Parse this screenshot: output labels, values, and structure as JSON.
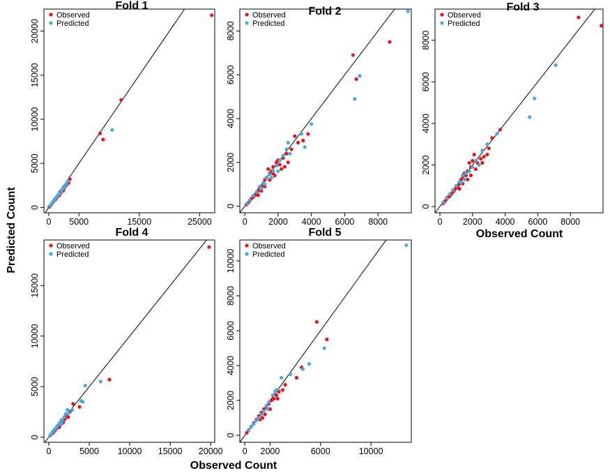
{
  "figure": {
    "ylabel": "Predicted Count",
    "xlabel_bottom": "Observed Count",
    "xlabel_right": "Observed Count"
  },
  "colors": {
    "observed": "#e8141c",
    "predicted": "#4aa8dd",
    "line": "#000000"
  },
  "legend": {
    "observed": "Observed",
    "predicted": "Predicted"
  },
  "chart_data": [
    {
      "type": "scatter",
      "title": "Fold 1",
      "xlim": [
        -800,
        27500
      ],
      "ylim": [
        -600,
        22500
      ],
      "xticks": [
        0,
        5000,
        15000,
        25000
      ],
      "yticks": [
        0,
        5000,
        10000,
        15000,
        20000
      ],
      "reference_line": "y = x",
      "series": [
        {
          "name": "Observed",
          "points": [
            [
              27000,
              21800
            ],
            [
              12000,
              12200
            ],
            [
              8500,
              8400
            ],
            [
              9000,
              7700
            ],
            [
              3500,
              3200
            ],
            [
              3300,
              2800
            ],
            [
              2600,
              2200
            ],
            [
              2200,
              2000
            ],
            [
              1900,
              1800
            ],
            [
              1600,
              1400
            ],
            [
              1300,
              1100
            ],
            [
              1100,
              900
            ],
            [
              900,
              800
            ],
            [
              700,
              600
            ],
            [
              600,
              500
            ],
            [
              400,
              300
            ],
            [
              250,
              200
            ],
            [
              100,
              80
            ],
            [
              1500,
              1300
            ],
            [
              2400,
              1900
            ],
            [
              3000,
              2600
            ],
            [
              1800,
              1400
            ],
            [
              2800,
              2500
            ],
            [
              1200,
              1000
            ],
            [
              2000,
              1700
            ]
          ]
        },
        {
          "name": "Predicted",
          "points": [
            [
              10500,
              8800
            ],
            [
              3200,
              3000
            ],
            [
              2900,
              2700
            ],
            [
              2500,
              2400
            ],
            [
              2100,
              1900
            ],
            [
              1800,
              1600
            ],
            [
              1500,
              1400
            ],
            [
              1200,
              1100
            ],
            [
              1000,
              950
            ],
            [
              800,
              700
            ],
            [
              600,
              550
            ],
            [
              400,
              350
            ],
            [
              200,
              180
            ],
            [
              2700,
              2300
            ],
            [
              1700,
              1500
            ],
            [
              2300,
              2100
            ]
          ]
        }
      ]
    },
    {
      "type": "scatter",
      "title": "Fold 2",
      "xlim": [
        -300,
        10000
      ],
      "ylim": [
        -300,
        9000
      ],
      "xticks": [
        0,
        2000,
        4000,
        6000,
        8000
      ],
      "yticks": [
        0,
        2000,
        4000,
        6000,
        8000
      ],
      "reference_line": "y = x",
      "series": [
        {
          "name": "Observed",
          "points": [
            [
              8700,
              7500
            ],
            [
              6500,
              6900
            ],
            [
              6700,
              5800
            ],
            [
              3800,
              3300
            ],
            [
              3000,
              3200
            ],
            [
              3200,
              2900
            ],
            [
              2800,
              2600
            ],
            [
              2500,
              2400
            ],
            [
              2300,
              2200
            ],
            [
              2000,
              2100
            ],
            [
              1900,
              2000
            ],
            [
              1700,
              1800
            ],
            [
              1600,
              1600
            ],
            [
              1500,
              1500
            ],
            [
              1400,
              1700
            ],
            [
              1300,
              1300
            ],
            [
              1200,
              1200
            ],
            [
              1100,
              1000
            ],
            [
              1000,
              900
            ],
            [
              900,
              850
            ],
            [
              800,
              700
            ],
            [
              700,
              600
            ],
            [
              600,
              500
            ],
            [
              500,
              420
            ],
            [
              400,
              350
            ],
            [
              300,
              250
            ],
            [
              200,
              150
            ],
            [
              100,
              80
            ],
            [
              2200,
              1700
            ],
            [
              1800,
              1400
            ],
            [
              2600,
              2000
            ],
            [
              2400,
              1800
            ],
            [
              1500,
              1200
            ],
            [
              1200,
              900
            ],
            [
              1000,
              700
            ],
            [
              800,
              500
            ],
            [
              2100,
              1900
            ],
            [
              1700,
              1500
            ],
            [
              3500,
              3000
            ]
          ]
        },
        {
          "name": "Predicted",
          "points": [
            [
              9800,
              8900
            ],
            [
              6900,
              5950
            ],
            [
              6600,
              4900
            ],
            [
              4000,
              3750
            ],
            [
              3600,
              2700
            ],
            [
              3400,
              3300
            ],
            [
              2600,
              2900
            ],
            [
              2500,
              2600
            ],
            [
              2300,
              2300
            ],
            [
              2100,
              2100
            ],
            [
              1900,
              1850
            ],
            [
              1700,
              1600
            ],
            [
              1500,
              1450
            ],
            [
              1300,
              1300
            ],
            [
              1100,
              1050
            ],
            [
              900,
              900
            ],
            [
              700,
              650
            ],
            [
              500,
              480
            ],
            [
              300,
              280
            ],
            [
              150,
              120
            ],
            [
              2700,
              2400
            ],
            [
              2000,
              1600
            ],
            [
              1600,
              1300
            ],
            [
              1200,
              1000
            ],
            [
              1000,
              800
            ]
          ]
        }
      ]
    },
    {
      "type": "scatter",
      "title": "Fold 3",
      "xlim": [
        -300,
        10000
      ],
      "ylim": [
        -300,
        9500
      ],
      "xticks": [
        0,
        2000,
        4000,
        6000,
        8000
      ],
      "yticks": [
        0,
        2000,
        4000,
        6000,
        8000
      ],
      "reference_line": "y = x",
      "series": [
        {
          "name": "Observed",
          "points": [
            [
              8500,
              9100
            ],
            [
              9900,
              8700
            ],
            [
              3700,
              3700
            ],
            [
              3200,
              3300
            ],
            [
              3000,
              2800
            ],
            [
              2700,
              2400
            ],
            [
              2500,
              2300
            ],
            [
              2300,
              2100
            ],
            [
              2100,
              2500
            ],
            [
              2000,
              2200
            ],
            [
              1900,
              1900
            ],
            [
              1800,
              2100
            ],
            [
              1700,
              1700
            ],
            [
              1600,
              1500
            ],
            [
              1500,
              1600
            ],
            [
              1400,
              1400
            ],
            [
              1300,
              1300
            ],
            [
              1200,
              1100
            ],
            [
              1100,
              1000
            ],
            [
              1000,
              900
            ],
            [
              900,
              800
            ],
            [
              800,
              700
            ],
            [
              700,
              600
            ],
            [
              600,
              500
            ],
            [
              500,
              450
            ],
            [
              400,
              350
            ],
            [
              300,
              250
            ],
            [
              200,
              150
            ],
            [
              2200,
              1800
            ],
            [
              2600,
              2100
            ],
            [
              1700,
              1300
            ],
            [
              1400,
              1100
            ],
            [
              2900,
              2500
            ],
            [
              1900,
              1500
            ],
            [
              1200,
              850
            ]
          ]
        },
        {
          "name": "Predicted",
          "points": [
            [
              7100,
              6800
            ],
            [
              5800,
              5200
            ],
            [
              5500,
              4300
            ],
            [
              3500,
              3500
            ],
            [
              2900,
              3000
            ],
            [
              2600,
              2700
            ],
            [
              2200,
              2200
            ],
            [
              2000,
              1900
            ],
            [
              1800,
              1700
            ],
            [
              1600,
              1600
            ],
            [
              1400,
              1500
            ],
            [
              1200,
              1200
            ],
            [
              1000,
              1000
            ],
            [
              800,
              800
            ],
            [
              600,
              600
            ],
            [
              400,
              400
            ],
            [
              200,
              200
            ],
            [
              1500,
              1300
            ],
            [
              1300,
              1150
            ],
            [
              2400,
              2000
            ]
          ]
        }
      ]
    },
    {
      "type": "scatter",
      "title": "Fold 4",
      "xlim": [
        -600,
        20500
      ],
      "ylim": [
        -500,
        19500
      ],
      "xticks": [
        0,
        5000,
        10000,
        15000,
        20000
      ],
      "yticks": [
        0,
        5000,
        10000,
        15000
      ],
      "reference_line": "y = x",
      "series": [
        {
          "name": "Observed",
          "points": [
            [
              19800,
              18800
            ],
            [
              7500,
              5700
            ],
            [
              3800,
              3000
            ],
            [
              3000,
              3300
            ],
            [
              2600,
              2500
            ],
            [
              2200,
              2100
            ],
            [
              2000,
              1800
            ],
            [
              1800,
              1500
            ],
            [
              1600,
              1700
            ],
            [
              1400,
              1300
            ],
            [
              1200,
              1100
            ],
            [
              1000,
              900
            ],
            [
              800,
              700
            ],
            [
              600,
              500
            ],
            [
              400,
              350
            ],
            [
              200,
              180
            ],
            [
              2400,
              2000
            ],
            [
              1700,
              1400
            ],
            [
              1300,
              1000
            ]
          ]
        },
        {
          "name": "Predicted",
          "points": [
            [
              4500,
              5100
            ],
            [
              6400,
              5500
            ],
            [
              4200,
              3500
            ],
            [
              4000,
              3600
            ],
            [
              2900,
              2700
            ],
            [
              2300,
              2700
            ],
            [
              2100,
              2300
            ],
            [
              1900,
              2000
            ],
            [
              1700,
              1700
            ],
            [
              1500,
              1600
            ],
            [
              1300,
              1400
            ],
            [
              1100,
              1150
            ],
            [
              900,
              950
            ],
            [
              700,
              750
            ],
            [
              500,
              550
            ],
            [
              300,
              320
            ],
            [
              150,
              160
            ],
            [
              2500,
              2400
            ],
            [
              1600,
              1300
            ]
          ]
        }
      ]
    },
    {
      "type": "scatter",
      "title": "Fold 5",
      "xlim": [
        -400,
        13200
      ],
      "ylim": [
        -400,
        11200
      ],
      "xticks": [
        0,
        2000,
        6000,
        10000
      ],
      "yticks": [
        0,
        2000,
        4000,
        6000,
        8000,
        10000
      ],
      "reference_line": "y = x",
      "series": [
        {
          "name": "Observed",
          "points": [
            [
              5700,
              6500
            ],
            [
              6500,
              5500
            ],
            [
              4500,
              3900
            ],
            [
              4100,
              3300
            ],
            [
              3200,
              2900
            ],
            [
              3000,
              2600
            ],
            [
              2700,
              2500
            ],
            [
              2500,
              2300
            ],
            [
              2300,
              2100
            ],
            [
              2100,
              2000
            ],
            [
              1900,
              1800
            ],
            [
              1700,
              1600
            ],
            [
              1500,
              1500
            ],
            [
              1300,
              1300
            ],
            [
              1100,
              1100
            ],
            [
              900,
              900
            ],
            [
              700,
              700
            ],
            [
              500,
              500
            ],
            [
              300,
              300
            ],
            [
              150,
              150
            ],
            [
              2000,
              1500
            ],
            [
              1600,
              1200
            ],
            [
              1200,
              900
            ],
            [
              2600,
              2100
            ],
            [
              1400,
              1000
            ]
          ]
        },
        {
          "name": "Predicted",
          "points": [
            [
              12800,
              10900
            ],
            [
              6300,
              5000
            ],
            [
              5100,
              4100
            ],
            [
              4600,
              3800
            ],
            [
              3600,
              3500
            ],
            [
              2900,
              3300
            ],
            [
              2500,
              2600
            ],
            [
              2200,
              2300
            ],
            [
              1900,
              1900
            ],
            [
              1700,
              1700
            ],
            [
              1500,
              1400
            ],
            [
              1300,
              1200
            ],
            [
              1100,
              1000
            ],
            [
              900,
              850
            ],
            [
              700,
              650
            ],
            [
              500,
              480
            ],
            [
              300,
              280
            ],
            [
              2400,
              2500
            ],
            [
              1800,
              1500
            ]
          ]
        }
      ]
    }
  ]
}
